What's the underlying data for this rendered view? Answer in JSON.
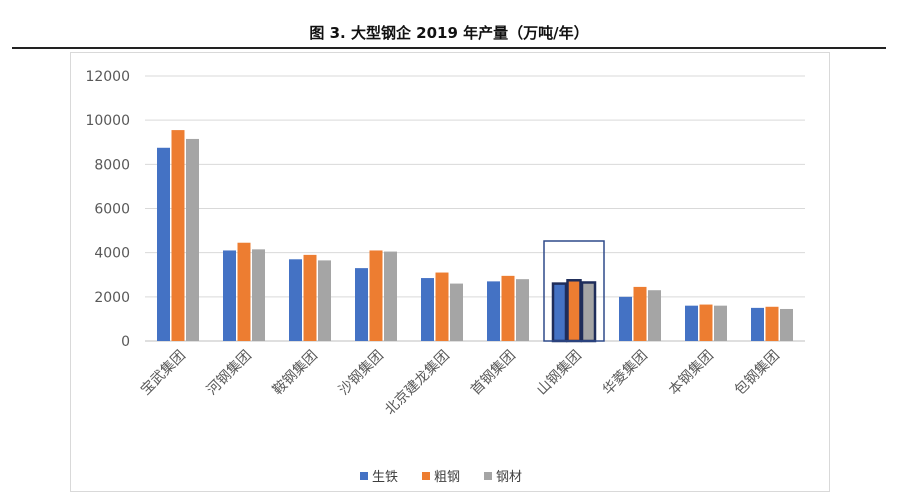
{
  "chart_data": {
    "type": "bar",
    "title": "图 3. 大型钢企 2019 年产量（万吨/年）",
    "xlabel": "",
    "ylabel": "",
    "ylim": [
      0,
      12000
    ],
    "yticks": [
      0,
      2000,
      4000,
      6000,
      8000,
      10000,
      12000
    ],
    "grid": true,
    "legend_position": "bottom",
    "categories": [
      "宝武集团",
      "河钢集团",
      "鞍钢集团",
      "沙钢集团",
      "北京建龙集团",
      "首钢集团",
      "山钢集团",
      "华菱集团",
      "本钢集团",
      "包钢集团"
    ],
    "series": [
      {
        "name": "生铁",
        "color": "#4472c4",
        "values": [
          8750,
          4100,
          3700,
          3300,
          2850,
          2700,
          2600,
          2000,
          1600,
          1500
        ]
      },
      {
        "name": "粗钢",
        "color": "#ed7d31",
        "values": [
          9550,
          4450,
          3900,
          4100,
          3100,
          2950,
          2750,
          2450,
          1650,
          1550
        ]
      },
      {
        "name": "钢材",
        "color": "#a5a5a5",
        "values": [
          9150,
          4150,
          3650,
          4050,
          2600,
          2800,
          2650,
          2300,
          1600,
          1450
        ]
      }
    ],
    "highlighted_category": "山钢集团"
  }
}
